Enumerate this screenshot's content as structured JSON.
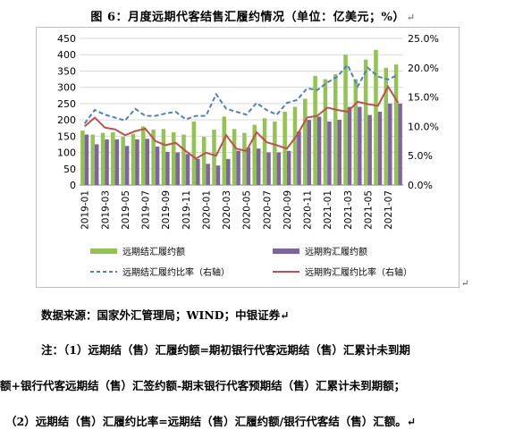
{
  "title": "图 6：月度远期代客结售汇履约情况（单位：亿美元；%）",
  "para_mark": "↵",
  "chart_data": {
    "type": "bar-line-combo",
    "categories": [
      "2019-01",
      "2019-02",
      "2019-03",
      "2019-04",
      "2019-05",
      "2019-06",
      "2019-07",
      "2019-08",
      "2019-09",
      "2019-10",
      "2019-11",
      "2019-12",
      "2020-01",
      "2020-02",
      "2020-03",
      "2020-04",
      "2020-05",
      "2020-06",
      "2020-07",
      "2020-08",
      "2020-09",
      "2020-10",
      "2020-11",
      "2020-12",
      "2021-01",
      "2021-02",
      "2021-03",
      "2021-04",
      "2021-05",
      "2021-06",
      "2021-07",
      "2021-08"
    ],
    "x_tick_labels": [
      "2019-01",
      "2019-03",
      "2019-05",
      "2019-07",
      "2019-09",
      "2019-11",
      "2020-01",
      "2020-03",
      "2020-05",
      "2020-07",
      "2020-09",
      "2020-11",
      "2021-01",
      "2021-03",
      "2021-05",
      "2021-07"
    ],
    "left_axis": {
      "min": 0,
      "max": 450,
      "ticks": [
        "0",
        "50",
        "100",
        "150",
        "200",
        "250",
        "300",
        "350",
        "400",
        "450"
      ]
    },
    "right_axis": {
      "min": 0,
      "max": 25,
      "ticks": [
        "0.0%",
        "5.0%",
        "10.0%",
        "15.0%",
        "20.0%",
        "25.0%"
      ]
    },
    "series": [
      {
        "name": "远期结汇履约额",
        "kind": "bar",
        "axis": "left",
        "color": "#92c353",
        "values": [
          167,
          155,
          160,
          162,
          148,
          157,
          180,
          170,
          172,
          162,
          155,
          195,
          148,
          170,
          210,
          172,
          160,
          185,
          205,
          195,
          225,
          240,
          265,
          335,
          325,
          340,
          400,
          325,
          385,
          415,
          360,
          370
        ]
      },
      {
        "name": "远期购汇履约额",
        "kind": "bar",
        "axis": "left",
        "color": "#8064a2",
        "values": [
          155,
          125,
          140,
          140,
          120,
          140,
          142,
          118,
          102,
          100,
          95,
          80,
          65,
          60,
          80,
          105,
          115,
          112,
          100,
          100,
          105,
          165,
          200,
          210,
          195,
          200,
          240,
          240,
          215,
          225,
          250,
          250
        ]
      },
      {
        "name": "远期结汇履约比率（右轴）",
        "kind": "line",
        "axis": "right",
        "color": "#4f81bd",
        "dash": true,
        "values": [
          10.5,
          12.8,
          12,
          11.5,
          11,
          13,
          11.8,
          11.8,
          12.2,
          12.5,
          11.2,
          11.8,
          11.8,
          15.5,
          13,
          12.5,
          12,
          14,
          12.8,
          12,
          14,
          14.5,
          16.5,
          16.2,
          17.5,
          18.5,
          20.5,
          16.8,
          20,
          18.5,
          18,
          18.8
        ]
      },
      {
        "name": "远期购汇履约比率（右轴）",
        "kind": "line",
        "axis": "right",
        "color": "#c0504d",
        "values": [
          10,
          11.5,
          9.8,
          9.5,
          8.5,
          9.2,
          9.6,
          7.5,
          6.8,
          7.2,
          5.8,
          4.5,
          5.5,
          5,
          8.5,
          6.2,
          5.8,
          9,
          7.3,
          6.8,
          6.2,
          8.5,
          11.5,
          11.8,
          13.2,
          12.8,
          12.5,
          14.2,
          13.8,
          13.5,
          16.8,
          14
        ]
      }
    ]
  },
  "notes": {
    "source": "数据来源：国家外汇管理局；WIND；中银证券↵",
    "note1": "注：（1）远期结（售）汇履约额=期初银行代客远期结（售）汇累计未到期",
    "note2": "额+银行代客远期结（售）汇签约额-期末银行代客预期结（售）汇累计未到期额；",
    "note3": "（2）远期结（售）汇履约比率=远期结（售）汇履约额/银行代客结（售）汇额。↵"
  }
}
